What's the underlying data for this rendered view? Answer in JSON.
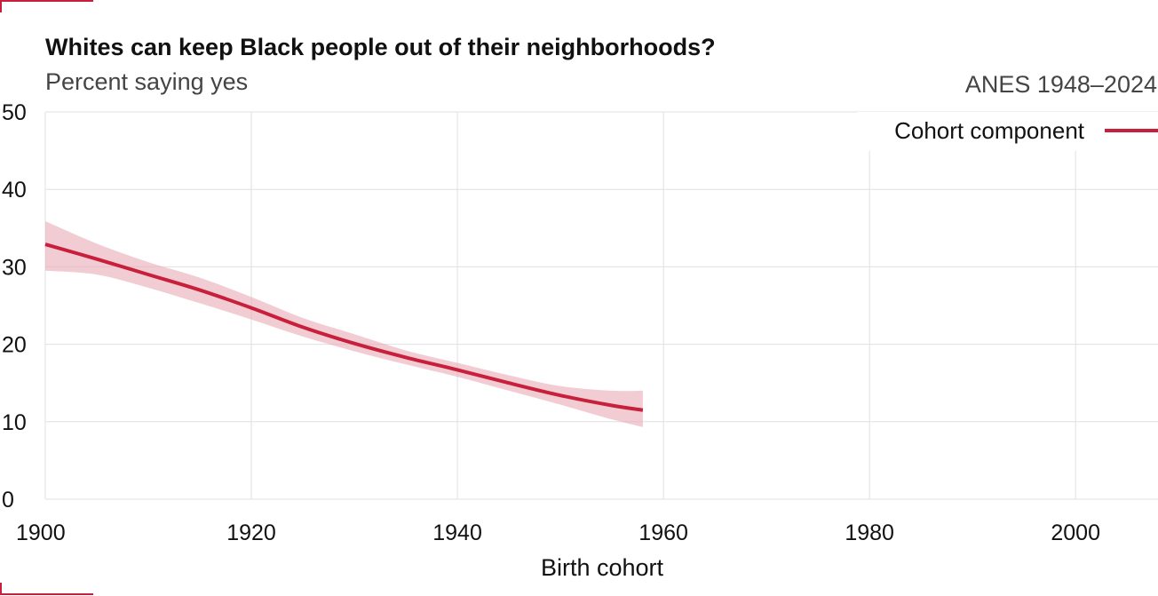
{
  "chart_data": {
    "type": "line",
    "title": "Whites can keep Black people out of their neighborhoods?",
    "subtitle": "Percent saying yes",
    "source": "ANES 1948–2024",
    "xlabel": "Birth cohort",
    "ylabel": "",
    "xlim": [
      1900,
      2008
    ],
    "ylim": [
      0,
      50
    ],
    "x_ticks": [
      1900,
      1920,
      1940,
      1960,
      1980,
      2000
    ],
    "y_ticks": [
      0,
      10,
      20,
      30,
      40,
      50
    ],
    "grid": true,
    "legend_position": "top-right",
    "colors": {
      "line": "#c8203c",
      "band": "#e9aab5",
      "frame_mark": "#c8203c"
    },
    "series": [
      {
        "name": "Cohort component",
        "x": [
          1900,
          1905,
          1910,
          1915,
          1920,
          1925,
          1930,
          1935,
          1940,
          1945,
          1950,
          1955,
          1958
        ],
        "y": [
          32.9,
          31.0,
          29.0,
          27.0,
          24.7,
          22.2,
          20.1,
          18.3,
          16.7,
          15.0,
          13.4,
          12.1,
          11.5
        ],
        "lower": [
          29.5,
          29.0,
          27.3,
          25.3,
          23.2,
          21.0,
          19.1,
          17.4,
          15.8,
          14.0,
          12.2,
          10.3,
          9.3
        ],
        "upper": [
          35.9,
          33.0,
          30.6,
          28.6,
          26.1,
          23.4,
          21.3,
          19.2,
          17.6,
          16.0,
          14.6,
          14.0,
          14.0
        ]
      }
    ]
  }
}
